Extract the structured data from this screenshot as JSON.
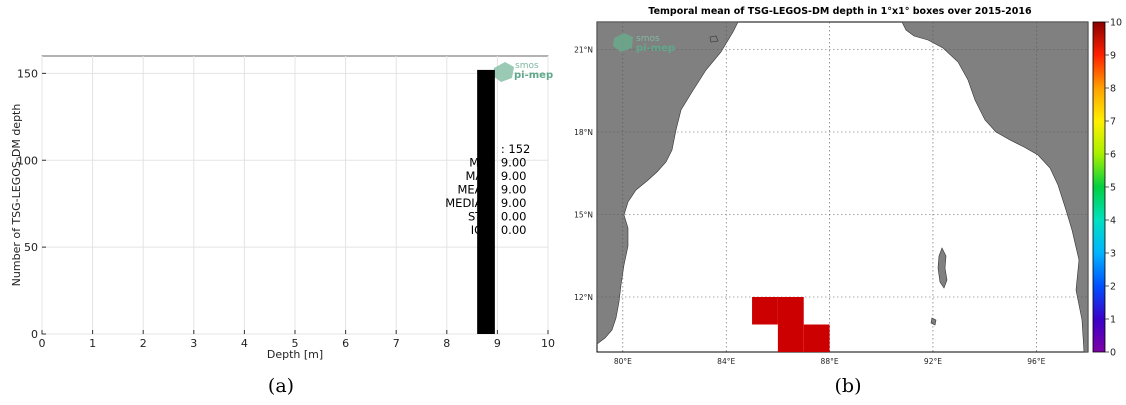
{
  "chart_data": [
    {
      "type": "bar",
      "panel_label": "(a)",
      "xlabel": "Depth [m]",
      "ylabel": "Number of TSG-LEGOS-DM depth",
      "xlim": [
        0,
        10
      ],
      "ylim": [
        0,
        160
      ],
      "xticks": [
        "0",
        "1",
        "2",
        "3",
        "4",
        "5",
        "6",
        "7",
        "8",
        "9",
        "10"
      ],
      "yticks": [
        "0",
        "50",
        "100",
        "150"
      ],
      "grid": true,
      "bars": [
        {
          "x_start": 8.6,
          "x_end": 8.95,
          "value": 152
        }
      ],
      "logo": {
        "line1": "smos",
        "line2": "pi-mep"
      },
      "stats": [
        {
          "label": "N",
          "value": ": 152"
        },
        {
          "label": "MIN",
          "value": "9.00"
        },
        {
          "label": "MAX",
          "value": "9.00"
        },
        {
          "label": "MEAN",
          "value": "9.00"
        },
        {
          "label": "MEDIAN",
          "value": "9.00"
        },
        {
          "label": "STD",
          "value": "0.00"
        },
        {
          "label": "IQR",
          "value": "0.00"
        }
      ]
    },
    {
      "type": "heatmap",
      "panel_label": "(b)",
      "title": "Temporal mean of TSG-LEGOS-DM depth in 1°x1° boxes over 2015-2016",
      "lon_range": [
        79,
        98
      ],
      "lat_range": [
        10,
        22
      ],
      "lon_ticks": [
        "80°E",
        "84°E",
        "88°E",
        "92°E",
        "96°E"
      ],
      "lat_ticks": [
        "12°N",
        "15°N",
        "18°N",
        "21°N"
      ],
      "colorbar_ticks": [
        "0",
        "1",
        "2",
        "3",
        "4",
        "5",
        "6",
        "7",
        "8",
        "9",
        "10"
      ],
      "colorbar_range": [
        0,
        10
      ],
      "cells": [
        {
          "lon": 85.5,
          "lat": 11.5,
          "value": 9.0
        },
        {
          "lon": 86.5,
          "lat": 11.5,
          "value": 9.0
        },
        {
          "lon": 86.5,
          "lat": 10.5,
          "value": 9.0
        },
        {
          "lon": 87.5,
          "lat": 10.5,
          "value": 9.0
        }
      ],
      "land_color": "#808080",
      "cell_color": "#cc0000",
      "logo": {
        "line1": "smos",
        "line2": "pi-mep"
      }
    }
  ]
}
